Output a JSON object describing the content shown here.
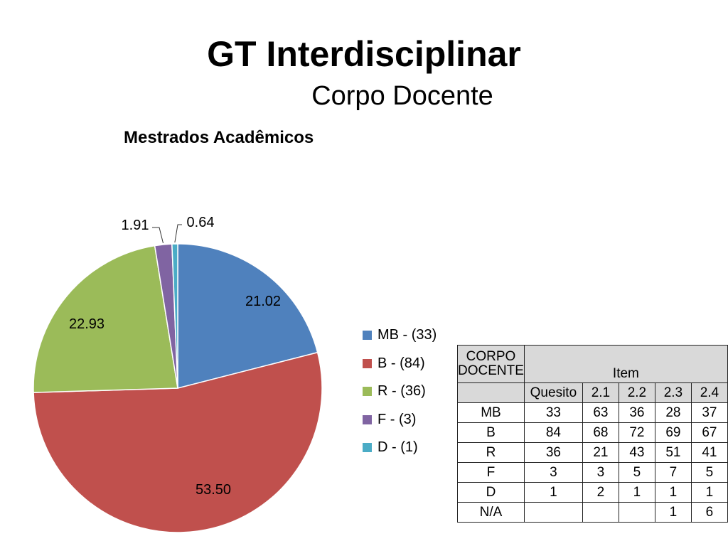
{
  "slide": {
    "title": "GT Interdisciplinar",
    "subtitle": "Corpo Docente"
  },
  "chart_data": {
    "type": "pie",
    "title": "Mestrados Acadêmicos",
    "slices": [
      {
        "legend": "MB - (33)",
        "value": 21.02,
        "label": "21.02",
        "color": "#4f81bd"
      },
      {
        "legend": "B - (84)",
        "value": 53.5,
        "label": "53.50",
        "color": "#c0504d"
      },
      {
        "legend": "R - (36)",
        "value": 22.93,
        "label": "22.93",
        "color": "#9bbb59"
      },
      {
        "legend": "F - (3)",
        "value": 1.91,
        "label": "1.91",
        "color": "#8064a2"
      },
      {
        "legend": "D - (1)",
        "value": 0.64,
        "label": "0.64",
        "color": "#4bacc6"
      }
    ],
    "legend_position": "right"
  },
  "table": {
    "header_corner": "CORPO DOCENTE",
    "header_item": "Item",
    "columns": [
      "Quesito",
      "2.1",
      "2.2",
      "2.3",
      "2.4"
    ],
    "rows": [
      {
        "label": "MB",
        "cells": [
          "33",
          "63",
          "36",
          "28",
          "37"
        ]
      },
      {
        "label": "B",
        "cells": [
          "84",
          "68",
          "72",
          "69",
          "67"
        ]
      },
      {
        "label": "R",
        "cells": [
          "36",
          "21",
          "43",
          "51",
          "41"
        ]
      },
      {
        "label": "F",
        "cells": [
          "3",
          "3",
          "5",
          "7",
          "5"
        ]
      },
      {
        "label": "D",
        "cells": [
          "1",
          "2",
          "1",
          "1",
          "1"
        ]
      },
      {
        "label": "N/A",
        "cells": [
          "",
          "",
          "",
          "1",
          "6"
        ]
      }
    ]
  }
}
